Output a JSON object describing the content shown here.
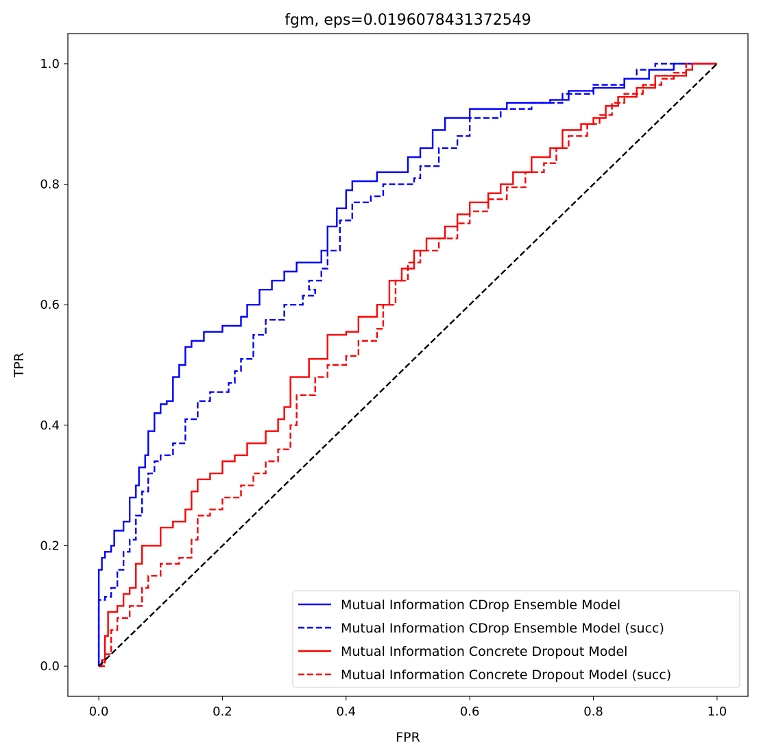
{
  "chart_data": {
    "type": "line",
    "title": "fgm, eps=0.0196078431372549",
    "xlabel": "FPR",
    "ylabel": "TPR",
    "xlim": [
      -0.05,
      1.05
    ],
    "ylim": [
      -0.05,
      1.05
    ],
    "xticks": [
      "0.0",
      "0.2",
      "0.4",
      "0.6",
      "0.8",
      "1.0"
    ],
    "yticks": [
      "0.0",
      "0.2",
      "0.4",
      "0.6",
      "0.8",
      "1.0"
    ],
    "grid": false,
    "legend_position": "lower-right",
    "series": [
      {
        "name": "Mutual Information CDrop Ensemble Model",
        "color": "#0000ff",
        "style": "solid",
        "points": [
          [
            0.0,
            0.0
          ],
          [
            0.0,
            0.16
          ],
          [
            0.005,
            0.18
          ],
          [
            0.01,
            0.19
          ],
          [
            0.02,
            0.2
          ],
          [
            0.025,
            0.225
          ],
          [
            0.04,
            0.24
          ],
          [
            0.05,
            0.28
          ],
          [
            0.06,
            0.3
          ],
          [
            0.065,
            0.33
          ],
          [
            0.075,
            0.35
          ],
          [
            0.08,
            0.39
          ],
          [
            0.09,
            0.42
          ],
          [
            0.1,
            0.435
          ],
          [
            0.11,
            0.44
          ],
          [
            0.12,
            0.48
          ],
          [
            0.13,
            0.5
          ],
          [
            0.14,
            0.53
          ],
          [
            0.15,
            0.54
          ],
          [
            0.17,
            0.555
          ],
          [
            0.2,
            0.565
          ],
          [
            0.23,
            0.58
          ],
          [
            0.24,
            0.6
          ],
          [
            0.26,
            0.625
          ],
          [
            0.28,
            0.64
          ],
          [
            0.3,
            0.655
          ],
          [
            0.32,
            0.67
          ],
          [
            0.35,
            0.67
          ],
          [
            0.36,
            0.69
          ],
          [
            0.37,
            0.73
          ],
          [
            0.385,
            0.76
          ],
          [
            0.4,
            0.79
          ],
          [
            0.41,
            0.805
          ],
          [
            0.45,
            0.82
          ],
          [
            0.5,
            0.845
          ],
          [
            0.52,
            0.86
          ],
          [
            0.54,
            0.89
          ],
          [
            0.56,
            0.91
          ],
          [
            0.6,
            0.925
          ],
          [
            0.66,
            0.935
          ],
          [
            0.73,
            0.94
          ],
          [
            0.76,
            0.955
          ],
          [
            0.8,
            0.96
          ],
          [
            0.85,
            0.975
          ],
          [
            0.89,
            0.99
          ],
          [
            0.93,
            1.0
          ],
          [
            1.0,
            1.0
          ]
        ]
      },
      {
        "name": "Mutual Information CDrop Ensemble Model (succ)",
        "color": "#0000ff",
        "style": "dashed",
        "points": [
          [
            0.0,
            0.0
          ],
          [
            0.0,
            0.11
          ],
          [
            0.01,
            0.115
          ],
          [
            0.02,
            0.13
          ],
          [
            0.03,
            0.16
          ],
          [
            0.04,
            0.19
          ],
          [
            0.05,
            0.21
          ],
          [
            0.06,
            0.25
          ],
          [
            0.07,
            0.29
          ],
          [
            0.08,
            0.32
          ],
          [
            0.09,
            0.34
          ],
          [
            0.1,
            0.35
          ],
          [
            0.12,
            0.37
          ],
          [
            0.14,
            0.41
          ],
          [
            0.16,
            0.44
          ],
          [
            0.18,
            0.455
          ],
          [
            0.21,
            0.47
          ],
          [
            0.22,
            0.49
          ],
          [
            0.23,
            0.51
          ],
          [
            0.25,
            0.55
          ],
          [
            0.27,
            0.575
          ],
          [
            0.3,
            0.6
          ],
          [
            0.33,
            0.615
          ],
          [
            0.35,
            0.625
          ],
          [
            0.34,
            0.64
          ],
          [
            0.36,
            0.66
          ],
          [
            0.37,
            0.69
          ],
          [
            0.39,
            0.74
          ],
          [
            0.41,
            0.77
          ],
          [
            0.44,
            0.78
          ],
          [
            0.46,
            0.8
          ],
          [
            0.51,
            0.81
          ],
          [
            0.52,
            0.83
          ],
          [
            0.55,
            0.86
          ],
          [
            0.58,
            0.88
          ],
          [
            0.6,
            0.91
          ],
          [
            0.65,
            0.925
          ],
          [
            0.7,
            0.935
          ],
          [
            0.75,
            0.95
          ],
          [
            0.8,
            0.965
          ],
          [
            0.85,
            0.975
          ],
          [
            0.87,
            0.99
          ],
          [
            0.9,
            1.0
          ],
          [
            1.0,
            1.0
          ]
        ]
      },
      {
        "name": "Mutual Information Concrete Dropout Model",
        "color": "#ff0000",
        "style": "solid",
        "points": [
          [
            0.0,
            0.0
          ],
          [
            0.005,
            0.01
          ],
          [
            0.01,
            0.05
          ],
          [
            0.015,
            0.09
          ],
          [
            0.03,
            0.1
          ],
          [
            0.04,
            0.12
          ],
          [
            0.05,
            0.13
          ],
          [
            0.06,
            0.17
          ],
          [
            0.07,
            0.2
          ],
          [
            0.1,
            0.23
          ],
          [
            0.12,
            0.24
          ],
          [
            0.14,
            0.26
          ],
          [
            0.15,
            0.29
          ],
          [
            0.16,
            0.31
          ],
          [
            0.18,
            0.32
          ],
          [
            0.2,
            0.34
          ],
          [
            0.22,
            0.35
          ],
          [
            0.24,
            0.37
          ],
          [
            0.27,
            0.39
          ],
          [
            0.29,
            0.41
          ],
          [
            0.3,
            0.43
          ],
          [
            0.31,
            0.48
          ],
          [
            0.34,
            0.51
          ],
          [
            0.37,
            0.55
          ],
          [
            0.4,
            0.555
          ],
          [
            0.42,
            0.58
          ],
          [
            0.45,
            0.6
          ],
          [
            0.47,
            0.64
          ],
          [
            0.49,
            0.66
          ],
          [
            0.51,
            0.69
          ],
          [
            0.53,
            0.71
          ],
          [
            0.56,
            0.73
          ],
          [
            0.58,
            0.75
          ],
          [
            0.6,
            0.77
          ],
          [
            0.63,
            0.785
          ],
          [
            0.65,
            0.8
          ],
          [
            0.67,
            0.82
          ],
          [
            0.7,
            0.845
          ],
          [
            0.73,
            0.86
          ],
          [
            0.75,
            0.89
          ],
          [
            0.78,
            0.9
          ],
          [
            0.8,
            0.91
          ],
          [
            0.82,
            0.93
          ],
          [
            0.84,
            0.945
          ],
          [
            0.87,
            0.96
          ],
          [
            0.9,
            0.98
          ],
          [
            0.95,
            0.99
          ],
          [
            0.96,
            1.0
          ],
          [
            1.0,
            1.0
          ]
        ]
      },
      {
        "name": "Mutual Information Concrete Dropout Model (succ)",
        "color": "#ff0000",
        "style": "dashed",
        "points": [
          [
            0.0,
            0.0
          ],
          [
            0.01,
            0.02
          ],
          [
            0.02,
            0.06
          ],
          [
            0.03,
            0.08
          ],
          [
            0.05,
            0.1
          ],
          [
            0.07,
            0.13
          ],
          [
            0.08,
            0.15
          ],
          [
            0.1,
            0.17
          ],
          [
            0.13,
            0.18
          ],
          [
            0.15,
            0.21
          ],
          [
            0.16,
            0.25
          ],
          [
            0.18,
            0.26
          ],
          [
            0.2,
            0.28
          ],
          [
            0.23,
            0.3
          ],
          [
            0.25,
            0.32
          ],
          [
            0.27,
            0.34
          ],
          [
            0.29,
            0.36
          ],
          [
            0.31,
            0.4
          ],
          [
            0.32,
            0.45
          ],
          [
            0.35,
            0.48
          ],
          [
            0.37,
            0.5
          ],
          [
            0.4,
            0.515
          ],
          [
            0.42,
            0.54
          ],
          [
            0.45,
            0.56
          ],
          [
            0.46,
            0.6
          ],
          [
            0.48,
            0.64
          ],
          [
            0.5,
            0.67
          ],
          [
            0.52,
            0.69
          ],
          [
            0.55,
            0.71
          ],
          [
            0.58,
            0.735
          ],
          [
            0.6,
            0.755
          ],
          [
            0.63,
            0.775
          ],
          [
            0.66,
            0.795
          ],
          [
            0.69,
            0.82
          ],
          [
            0.72,
            0.835
          ],
          [
            0.74,
            0.86
          ],
          [
            0.76,
            0.88
          ],
          [
            0.79,
            0.9
          ],
          [
            0.81,
            0.915
          ],
          [
            0.83,
            0.935
          ],
          [
            0.85,
            0.95
          ],
          [
            0.88,
            0.965
          ],
          [
            0.91,
            0.975
          ],
          [
            0.93,
            0.985
          ],
          [
            0.95,
            1.0
          ],
          [
            1.0,
            1.0
          ]
        ]
      },
      {
        "name": "",
        "color": "#000000",
        "style": "dashed",
        "points": [
          [
            0.0,
            0.0
          ],
          [
            1.0,
            1.0
          ]
        ]
      }
    ]
  }
}
